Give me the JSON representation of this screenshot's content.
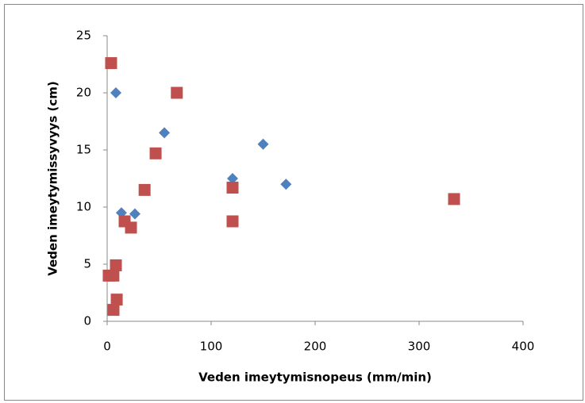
{
  "chart_data": {
    "type": "scatter",
    "x_label": "Veden imeytymisnopeus (mm/min)",
    "y_label": "Veden imeytymissyvyys (cm)",
    "xlim": [
      0,
      400
    ],
    "xticks": [
      0,
      100,
      200,
      300,
      400
    ],
    "ylim": [
      0,
      25
    ],
    "yticks": [
      0,
      5,
      10,
      15,
      20,
      25
    ],
    "grid": false,
    "series": [
      {
        "color": "#4f81bd",
        "marker": "diamond",
        "x": [
          8.4,
          13.7,
          26.7,
          55,
          120.6,
          150,
          172
        ],
        "values": [
          20.0,
          9.5,
          9.4,
          16.5,
          12.5,
          15.5,
          12.0
        ]
      },
      {
        "color": "#c0504d",
        "marker": "square",
        "x": [
          3.8,
          67,
          46.6,
          36,
          120.6,
          120.6,
          333.6,
          16.8,
          22.9,
          8.4,
          1.5,
          6,
          9.2,
          6.1
        ],
        "values": [
          22.6,
          20.0,
          14.7,
          11.5,
          11.7,
          8.75,
          10.7,
          8.75,
          8.2,
          4.9,
          4.0,
          4.0,
          1.9,
          1.0
        ]
      }
    ]
  }
}
